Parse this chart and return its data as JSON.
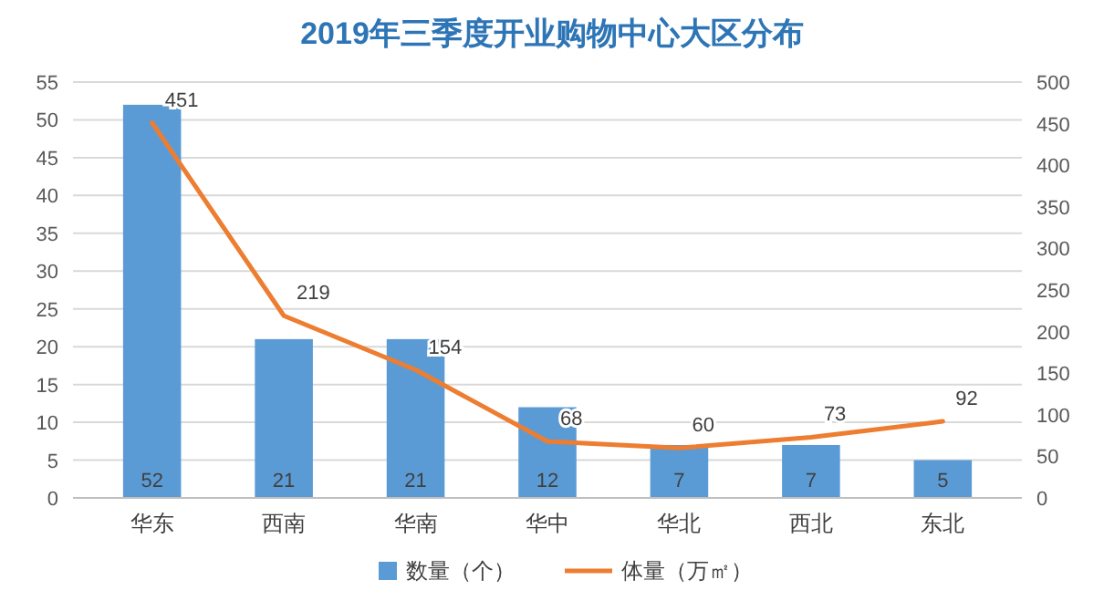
{
  "chart_data": {
    "type": "bar",
    "title": "2019年三季度开业购物中心大区分布",
    "categories": [
      "华东",
      "西南",
      "华南",
      "华中",
      "华北",
      "西北",
      "东北"
    ],
    "series": [
      {
        "name": "数量（个）",
        "color": "#5b9bd5",
        "values": [
          52,
          21,
          21,
          12,
          7,
          7,
          5
        ]
      },
      {
        "name": "体量（万㎡）",
        "type": "line",
        "axis": "y2",
        "color": "#ed7d31",
        "values": [
          451,
          219,
          154,
          68,
          60,
          73,
          92
        ]
      }
    ],
    "ylim": [
      0,
      55
    ],
    "yticks": [
      0,
      5,
      10,
      15,
      20,
      25,
      30,
      35,
      40,
      45,
      50,
      55
    ],
    "y2lim": [
      0,
      500
    ],
    "y2ticks": [
      0,
      50,
      100,
      150,
      200,
      250,
      300,
      350,
      400,
      450,
      500
    ],
    "grid": "y",
    "legend": "bottom",
    "data_labels": true,
    "marker": "none",
    "line_style": "solid"
  }
}
